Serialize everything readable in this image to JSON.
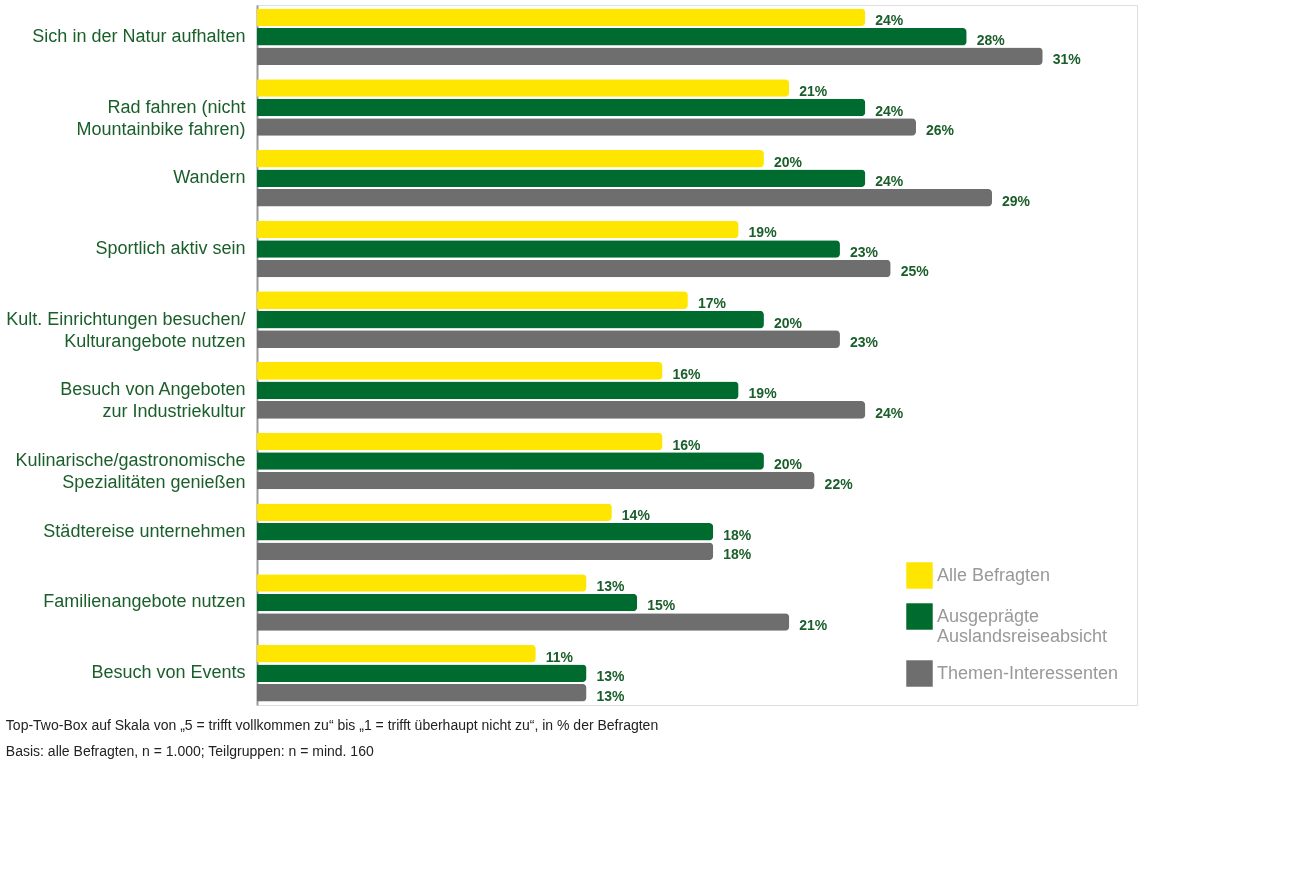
{
  "chart_data": {
    "type": "bar",
    "orientation": "horizontal",
    "categories": [
      "Sich in der Natur aufhalten",
      "Rad fahren (nicht\nMountainbike fahren)",
      "Wandern",
      "Sportlich aktiv sein",
      "Kult. Einrichtungen besuchen/\nKulturangebote nutzen",
      "Besuch von Angeboten\nzur Industriekultur",
      "Kulinarische/gastronomische\nSpezialitäten genießen",
      "Städtereise unternehmen",
      "Familienangebote nutzen",
      "Besuch von Events"
    ],
    "series": [
      {
        "name": "Alle Befragten",
        "color": "#ffe600",
        "values": [
          24,
          21,
          20,
          19,
          17,
          16,
          16,
          14,
          13,
          11
        ],
        "value_labels": [
          "24%",
          "21%",
          "20%",
          "19%",
          "17%",
          "16%",
          "16%",
          "14%",
          "13%",
          "11%"
        ]
      },
      {
        "name": "Ausgeprägte\nAuslandsreiseabsicht",
        "color": "#006b2e",
        "values": [
          28,
          24,
          24,
          23,
          20,
          19,
          20,
          18,
          15,
          13
        ],
        "value_labels": [
          "28%",
          "24%",
          "24%",
          "23%",
          "20%",
          "19%",
          "20%",
          "18%",
          "15%",
          "13%"
        ]
      },
      {
        "name": "Themen-Interessenten",
        "color": "#6e6e6e",
        "values": [
          31,
          26,
          29,
          25,
          23,
          24,
          22,
          18,
          21,
          13
        ],
        "value_labels": [
          "31%",
          "26%",
          "29%",
          "25%",
          "23%",
          "24%",
          "22%",
          "18%",
          "21%",
          "13%"
        ]
      }
    ],
    "legend": "bottom right",
    "grid": false,
    "annotations": [
      "Top-Two-Box auf Skala von „5 = trifft vollkommen zu“ bis „1 = trifft überhaupt nicht zu“, in % der Befragten",
      "Basis: alle Befragten, n = 1.000; Teilgruppen: n = mind. 160"
    ]
  }
}
